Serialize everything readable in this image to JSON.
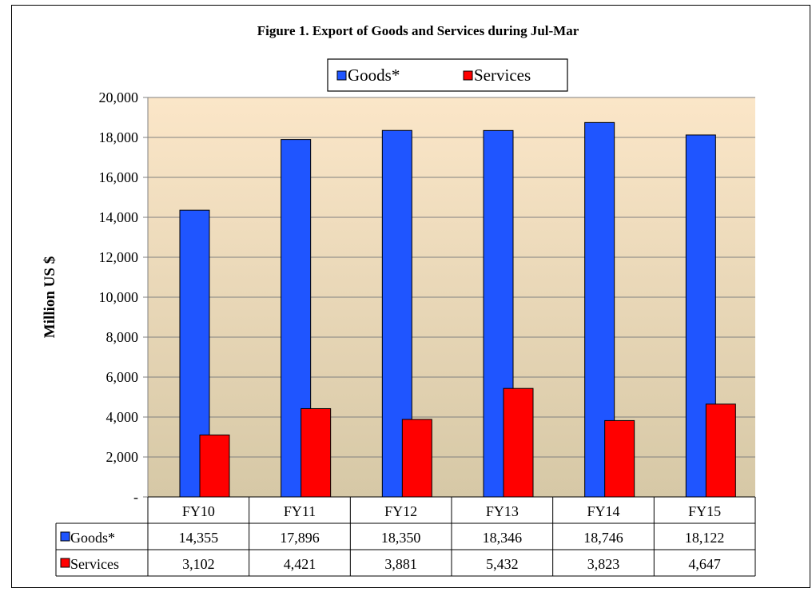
{
  "chart_data": {
    "type": "bar",
    "title": "Figure 1. Export of Goods and Services during Jul-Mar",
    "ylabel": "Million US $",
    "xlabel": "",
    "categories": [
      "FY10",
      "FY11",
      "FY12",
      "FY13",
      "FY14",
      "FY15"
    ],
    "series": [
      {
        "name": "Goods*",
        "values": [
          14355,
          17896,
          18350,
          18346,
          18746,
          18122
        ],
        "color": "#1f55ff"
      },
      {
        "name": "Services",
        "values": [
          3102,
          4421,
          3881,
          5432,
          3823,
          4647
        ],
        "color": "#ff0000"
      }
    ],
    "ylim": [
      0,
      20000
    ],
    "yticks": [
      0,
      2000,
      4000,
      6000,
      8000,
      10000,
      12000,
      14000,
      16000,
      18000,
      20000
    ],
    "ytick_labels": [
      "-",
      "2,000",
      "4,000",
      "6,000",
      "8,000",
      "10,000",
      "12,000",
      "14,000",
      "16,000",
      "18,000",
      "20,000"
    ],
    "grid": true,
    "legend": "top-center",
    "data_table": {
      "rows": [
        {
          "label": "Goods*",
          "values": [
            "14,355",
            "17,896",
            "18,350",
            "18,346",
            "18,746",
            "18,122"
          ]
        },
        {
          "label": "Services",
          "values": [
            "3,102",
            "4,421",
            "3,881",
            "5,432",
            "3,823",
            "4,647"
          ]
        }
      ]
    },
    "plot_gradient": [
      "#fbe6c8",
      "#d6c8a6"
    ]
  }
}
